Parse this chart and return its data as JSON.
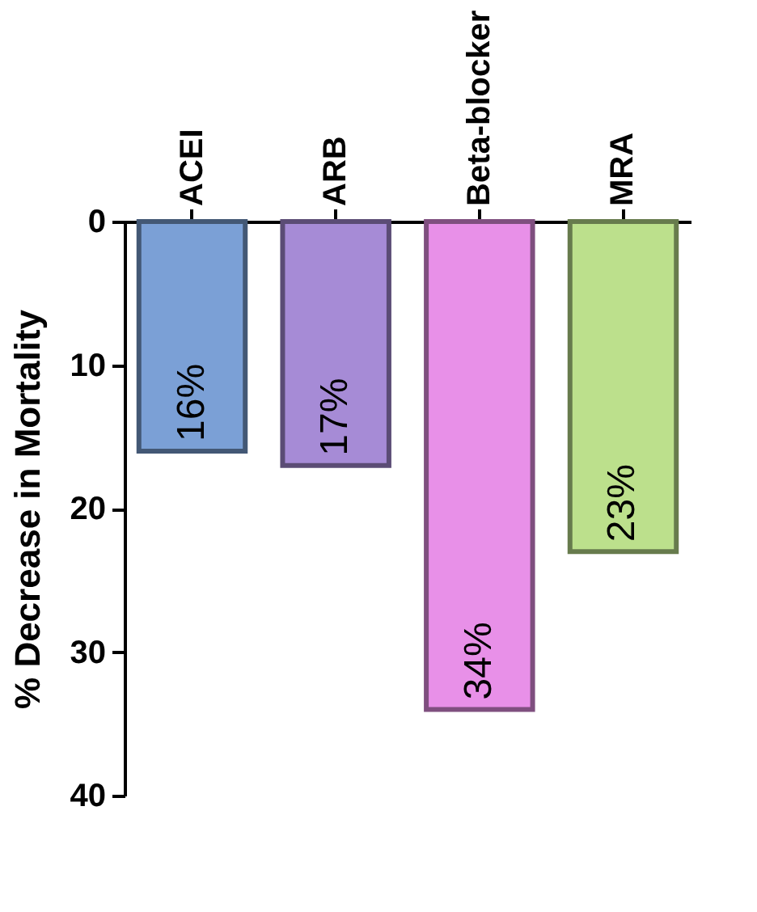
{
  "chart_data": {
    "type": "bar",
    "ylabel": "% Decrease in Mortality",
    "categories": [
      "ACEI",
      "ARB",
      "Beta-blocker",
      "MRA"
    ],
    "values": [
      16,
      17,
      34,
      23
    ],
    "colors": [
      "#7ba0d6",
      "#a68bd6",
      "#e890e8",
      "#bce08c"
    ],
    "value_labels": [
      "16%",
      "17%",
      "34%",
      "23%"
    ],
    "ylim": [
      40,
      0
    ],
    "yticks": [
      0,
      10,
      20,
      30,
      40
    ],
    "grid": false
  }
}
